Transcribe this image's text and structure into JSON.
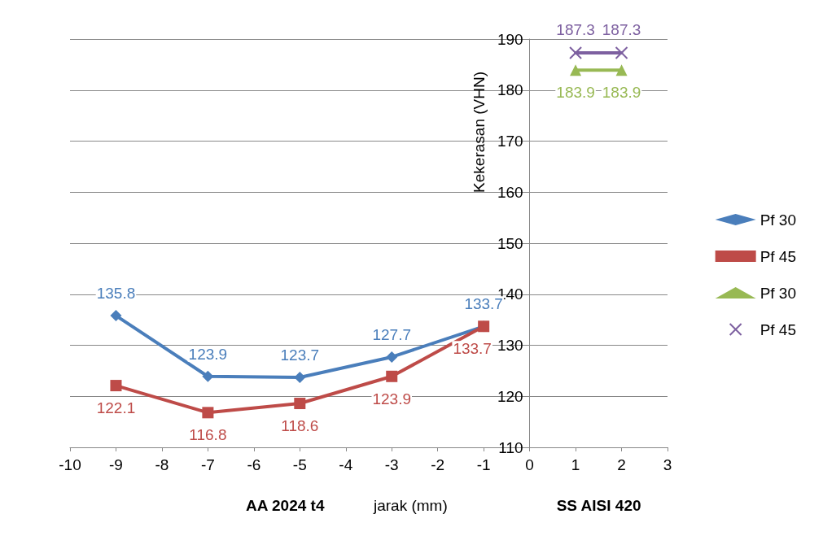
{
  "chart_data": {
    "type": "line",
    "xlabel": "jarak (mm)",
    "ylabel": "Kekerasan (VHN)",
    "annotations": [
      "AA 2024 t4",
      "SS AISI 420"
    ],
    "xlim": [
      -10,
      3
    ],
    "xticks": [
      -10,
      -9,
      -8,
      -7,
      -6,
      -5,
      -4,
      -3,
      -2,
      -1,
      0,
      1,
      2,
      3
    ],
    "ylim": [
      110,
      190
    ],
    "yticks": [
      110,
      120,
      130,
      140,
      150,
      160,
      170,
      180,
      190
    ],
    "grid": "y",
    "legend": "right",
    "data_labels": true,
    "series": [
      {
        "name": "Pf 30",
        "color": "#4a7ebb",
        "marker": "diamond",
        "x": [
          -9,
          -7,
          -5,
          -3,
          -1
        ],
        "values": [
          135.8,
          123.9,
          123.7,
          127.7,
          133.7
        ]
      },
      {
        "name": "Pf 45",
        "color": "#be4b48",
        "marker": "square",
        "x": [
          -9,
          -7,
          -5,
          -3,
          -1
        ],
        "values": [
          122.1,
          116.8,
          118.6,
          123.9,
          133.7
        ]
      },
      {
        "name": "Pf 30",
        "color": "#98b954",
        "marker": "triangle",
        "x": [
          1,
          2
        ],
        "values": [
          183.9,
          183.9
        ]
      },
      {
        "name": "Pf 45",
        "color": "#7d60a0",
        "marker": "cross",
        "x": [
          1,
          2
        ],
        "values": [
          187.3,
          187.3
        ]
      }
    ]
  }
}
